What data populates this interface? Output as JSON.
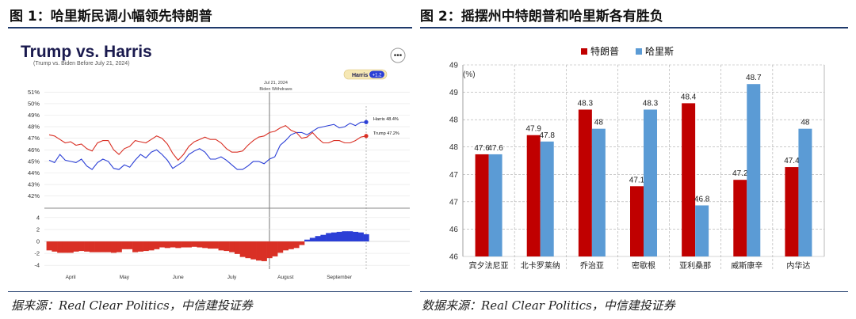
{
  "left_panel": {
    "figure_title": "图 1：哈里斯民调小幅领先特朗普",
    "source": "据来源：Real Clear Politics，中信建投证券"
  },
  "right_panel": {
    "figure_title": "图 2：摇摆州中特朗普和哈里斯各有胜负",
    "source": "数据来源：Real Clear Politics，中信建投证券"
  },
  "chart_data": [
    {
      "type": "line",
      "title": "Trump vs. Harris",
      "subtitle": "(Trump vs. Biden Before July 21, 2024)",
      "badge": {
        "label": "Harris",
        "value": "+1.2"
      },
      "event": {
        "date": "Jul 21, 2024",
        "label": "Biden Withdraws",
        "line1": "Jul 21, 2024",
        "line2": "Biden Withdraws"
      },
      "x_tick_labels": [
        "April",
        "May",
        "June",
        "July",
        "August",
        "September"
      ],
      "upper_yticks": [
        "51%",
        "50%",
        "49%",
        "48%",
        "47%",
        "46%",
        "45%",
        "44%",
        "43%",
        "42%"
      ],
      "upper_ylim": [
        41.5,
        51.5
      ],
      "lower_yticks": [
        "4",
        "2",
        "0",
        "-2",
        "-4"
      ],
      "lower_ylim": [
        -4.5,
        4.5
      ],
      "end_labels": {
        "harris": "Harris 48.4%",
        "trump": "Trump 47.2%"
      },
      "colors": {
        "democrat": "#2b3fd6",
        "republican": "#d93025",
        "gridline": "#e4e4e4"
      },
      "series": [
        {
          "name": "Harris",
          "color": "#2b3fd6",
          "values": [
            45.1,
            44.9,
            45.6,
            45.1,
            45.0,
            44.9,
            45.2,
            44.6,
            44.3,
            44.9,
            45.2,
            45.0,
            44.4,
            44.3,
            44.7,
            44.5,
            45.1,
            45.6,
            45.3,
            45.8,
            46.0,
            45.6,
            45.1,
            44.4,
            44.7,
            45.0,
            45.6,
            45.9,
            46.1,
            45.8,
            45.2,
            45.2,
            45.4,
            45.1,
            44.7,
            44.3,
            44.3,
            44.6,
            45.0,
            45.0,
            44.8,
            45.2,
            45.4,
            46.4,
            46.8,
            47.3,
            47.5,
            47.5,
            47.3,
            47.6,
            47.9,
            48.0,
            48.1,
            48.2,
            47.9,
            48.0,
            48.3,
            48.1,
            48.4,
            48.4
          ]
        },
        {
          "name": "Trump",
          "color": "#d93025",
          "values": [
            47.3,
            47.2,
            46.9,
            46.6,
            46.7,
            46.4,
            46.5,
            46.1,
            45.9,
            46.6,
            46.8,
            46.8,
            46.0,
            45.6,
            46.1,
            46.3,
            46.8,
            46.7,
            46.6,
            46.9,
            47.2,
            47.0,
            46.5,
            45.7,
            45.1,
            45.6,
            46.3,
            46.7,
            46.9,
            47.1,
            46.9,
            46.9,
            46.6,
            46.1,
            45.8,
            45.8,
            45.9,
            46.4,
            46.8,
            47.1,
            47.2,
            47.5,
            47.6,
            47.9,
            48.1,
            47.7,
            47.5,
            47.0,
            47.1,
            47.5,
            47.0,
            46.6,
            46.6,
            46.8,
            46.8,
            46.6,
            46.6,
            46.8,
            47.1,
            47.2
          ]
        }
      ],
      "spread": {
        "name": "Spread",
        "values": [
          -1.5,
          -1.7,
          -1.9,
          -1.9,
          -1.9,
          -1.7,
          -1.6,
          -1.7,
          -1.8,
          -1.8,
          -1.8,
          -1.8,
          -1.9,
          -1.8,
          -1.3,
          -1.3,
          -1.8,
          -1.7,
          -1.6,
          -1.5,
          -1.3,
          -1.0,
          -1.1,
          -1.0,
          -1.1,
          -1.0,
          -1.0,
          -0.9,
          -1.0,
          -1.1,
          -1.2,
          -1.2,
          -1.5,
          -1.6,
          -1.8,
          -2.1,
          -2.6,
          -2.8,
          -3.0,
          -3.2,
          -3.3,
          -2.8,
          -2.5,
          -1.9,
          -1.5,
          -1.3,
          -1.1,
          -0.6,
          0.3,
          0.6,
          0.9,
          1.1,
          1.4,
          1.5,
          1.6,
          1.7,
          1.7,
          1.6,
          1.5,
          1.2
        ]
      }
    },
    {
      "type": "bar",
      "title": "",
      "unit": "(%)",
      "categories": [
        "宾夕法尼亚",
        "北卡罗莱纳",
        "乔治亚",
        "密歇根",
        "亚利桑那",
        "威斯康辛",
        "内华达"
      ],
      "ylim": [
        46,
        49
      ],
      "yticks": [
        "49",
        "49",
        "48",
        "48",
        "47",
        "47",
        "46",
        "46"
      ],
      "series": [
        {
          "name": "特朗普",
          "color": "#c00000",
          "values": [
            47.6,
            47.9,
            48.3,
            47.1,
            48.4,
            47.2,
            47.4
          ],
          "labels": [
            "47.6",
            "47.9",
            "48.3",
            "47.1",
            "48.4",
            "47.2",
            "47.4"
          ]
        },
        {
          "name": "哈里斯",
          "color": "#5b9bd5",
          "values": [
            47.6,
            47.8,
            48.0,
            48.3,
            46.8,
            48.7,
            48.0
          ],
          "labels": [
            "47.6",
            "47.8",
            "48",
            "48.3",
            "46.8",
            "48.7",
            "48"
          ]
        }
      ]
    }
  ]
}
